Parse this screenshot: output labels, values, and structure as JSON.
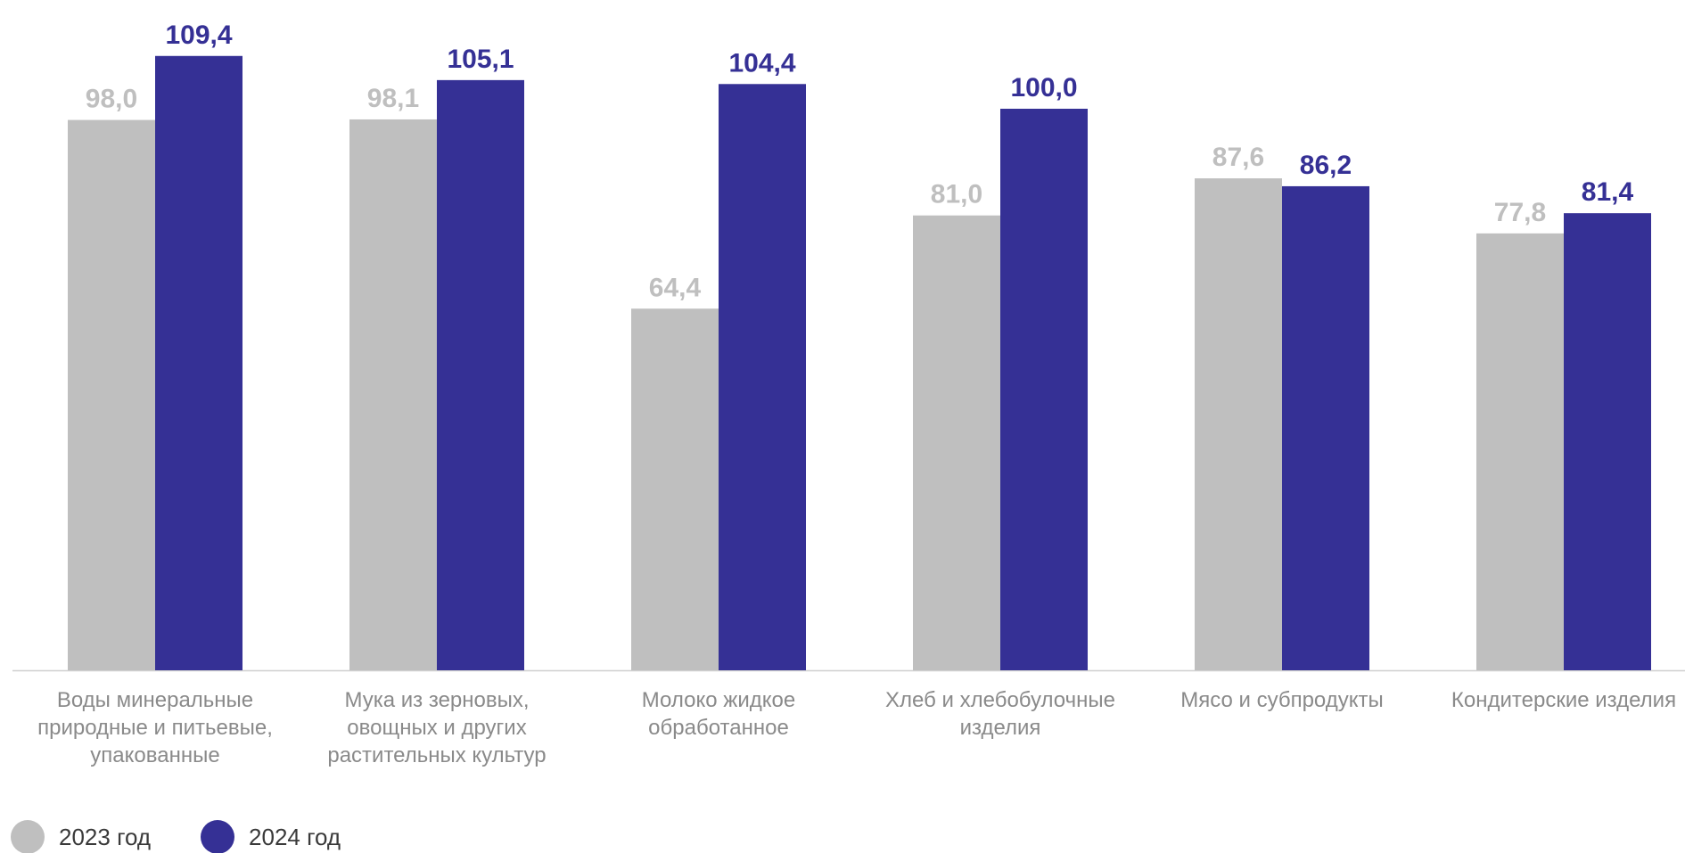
{
  "colors": {
    "series_2023": "#bfbfbf",
    "series_2024": "#353095",
    "axis": "#d0d0d0"
  },
  "chart_data": {
    "type": "bar",
    "categories": [
      "Воды минеральные природные и питьевые, упакованные",
      "Мука из зерновых, овощных и других растительных культур",
      "Молоко жидкое обработанное",
      "Хлеб и хлебобулочные изделия",
      "Мясо и субпродукты",
      "Кондитерские изделия"
    ],
    "category_lines": [
      [
        "Воды минеральные",
        "природные и питьевые,",
        "упакованные"
      ],
      [
        "Мука из зерновых,",
        "овощных и других",
        "растительных культур"
      ],
      [
        "Молоко жидкое",
        "обработанное"
      ],
      [
        "Хлеб и хлебобулочные",
        "изделия"
      ],
      [
        "Мясо и субпродукты"
      ],
      [
        "Кондитерские изделия"
      ]
    ],
    "series": [
      {
        "name": "2023 год",
        "values": [
          98.0,
          98.1,
          64.4,
          81.0,
          87.6,
          77.8
        ],
        "labels": [
          "98,0",
          "98,1",
          "64,4",
          "81,0",
          "87,6",
          "77,8"
        ]
      },
      {
        "name": "2024 год",
        "values": [
          109.4,
          105.1,
          104.4,
          100.0,
          86.2,
          81.4
        ],
        "labels": [
          "109,4",
          "105,1",
          "104,4",
          "100,0",
          "86,2",
          "81,4"
        ]
      }
    ],
    "ylim": [
      0,
      120
    ],
    "grid": false,
    "legend_position": "bottom-left",
    "title": "",
    "xlabel": "",
    "ylabel": ""
  },
  "legend": {
    "item_2023": "2023 год",
    "item_2024": "2024 год"
  }
}
